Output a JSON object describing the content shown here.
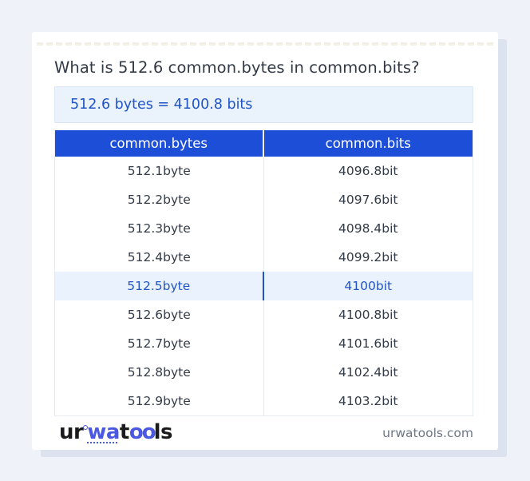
{
  "header": {
    "question": "What is 512.6 common.bytes in common.bits?"
  },
  "result": {
    "text": "512.6 bytes = 4100.8 bits"
  },
  "table": {
    "headers": [
      "common.bytes",
      "common.bits"
    ],
    "highlighted_row_index": 4,
    "rows": [
      {
        "bytes": "512.1byte",
        "bits": "4096.8bit"
      },
      {
        "bytes": "512.2byte",
        "bits": "4097.6bit"
      },
      {
        "bytes": "512.3byte",
        "bits": "4098.4bit"
      },
      {
        "bytes": "512.4byte",
        "bits": "4099.2bit"
      },
      {
        "bytes": "512.5byte",
        "bits": "4100bit"
      },
      {
        "bytes": "512.6byte",
        "bits": "4100.8bit"
      },
      {
        "bytes": "512.7byte",
        "bits": "4101.6bit"
      },
      {
        "bytes": "512.8byte",
        "bits": "4102.4bit"
      },
      {
        "bytes": "512.9byte",
        "bits": "4103.2bit"
      }
    ]
  },
  "footer": {
    "logo": {
      "seg1": "ur",
      "seg2": "wa",
      "seg3": "t",
      "seg4": "oo",
      "seg5": "ls"
    },
    "domain": "urwatools.com"
  },
  "colors": {
    "accent_blue": "#1d4ed8",
    "link_blue": "#2154c6",
    "result_bg": "#eaf2fc",
    "highlight_bg": "#e9f2fd",
    "page_bg": "#eff2f8",
    "shadow": "#dde3ee",
    "row_text": "#333b48",
    "divider": "#e6e9ee"
  }
}
